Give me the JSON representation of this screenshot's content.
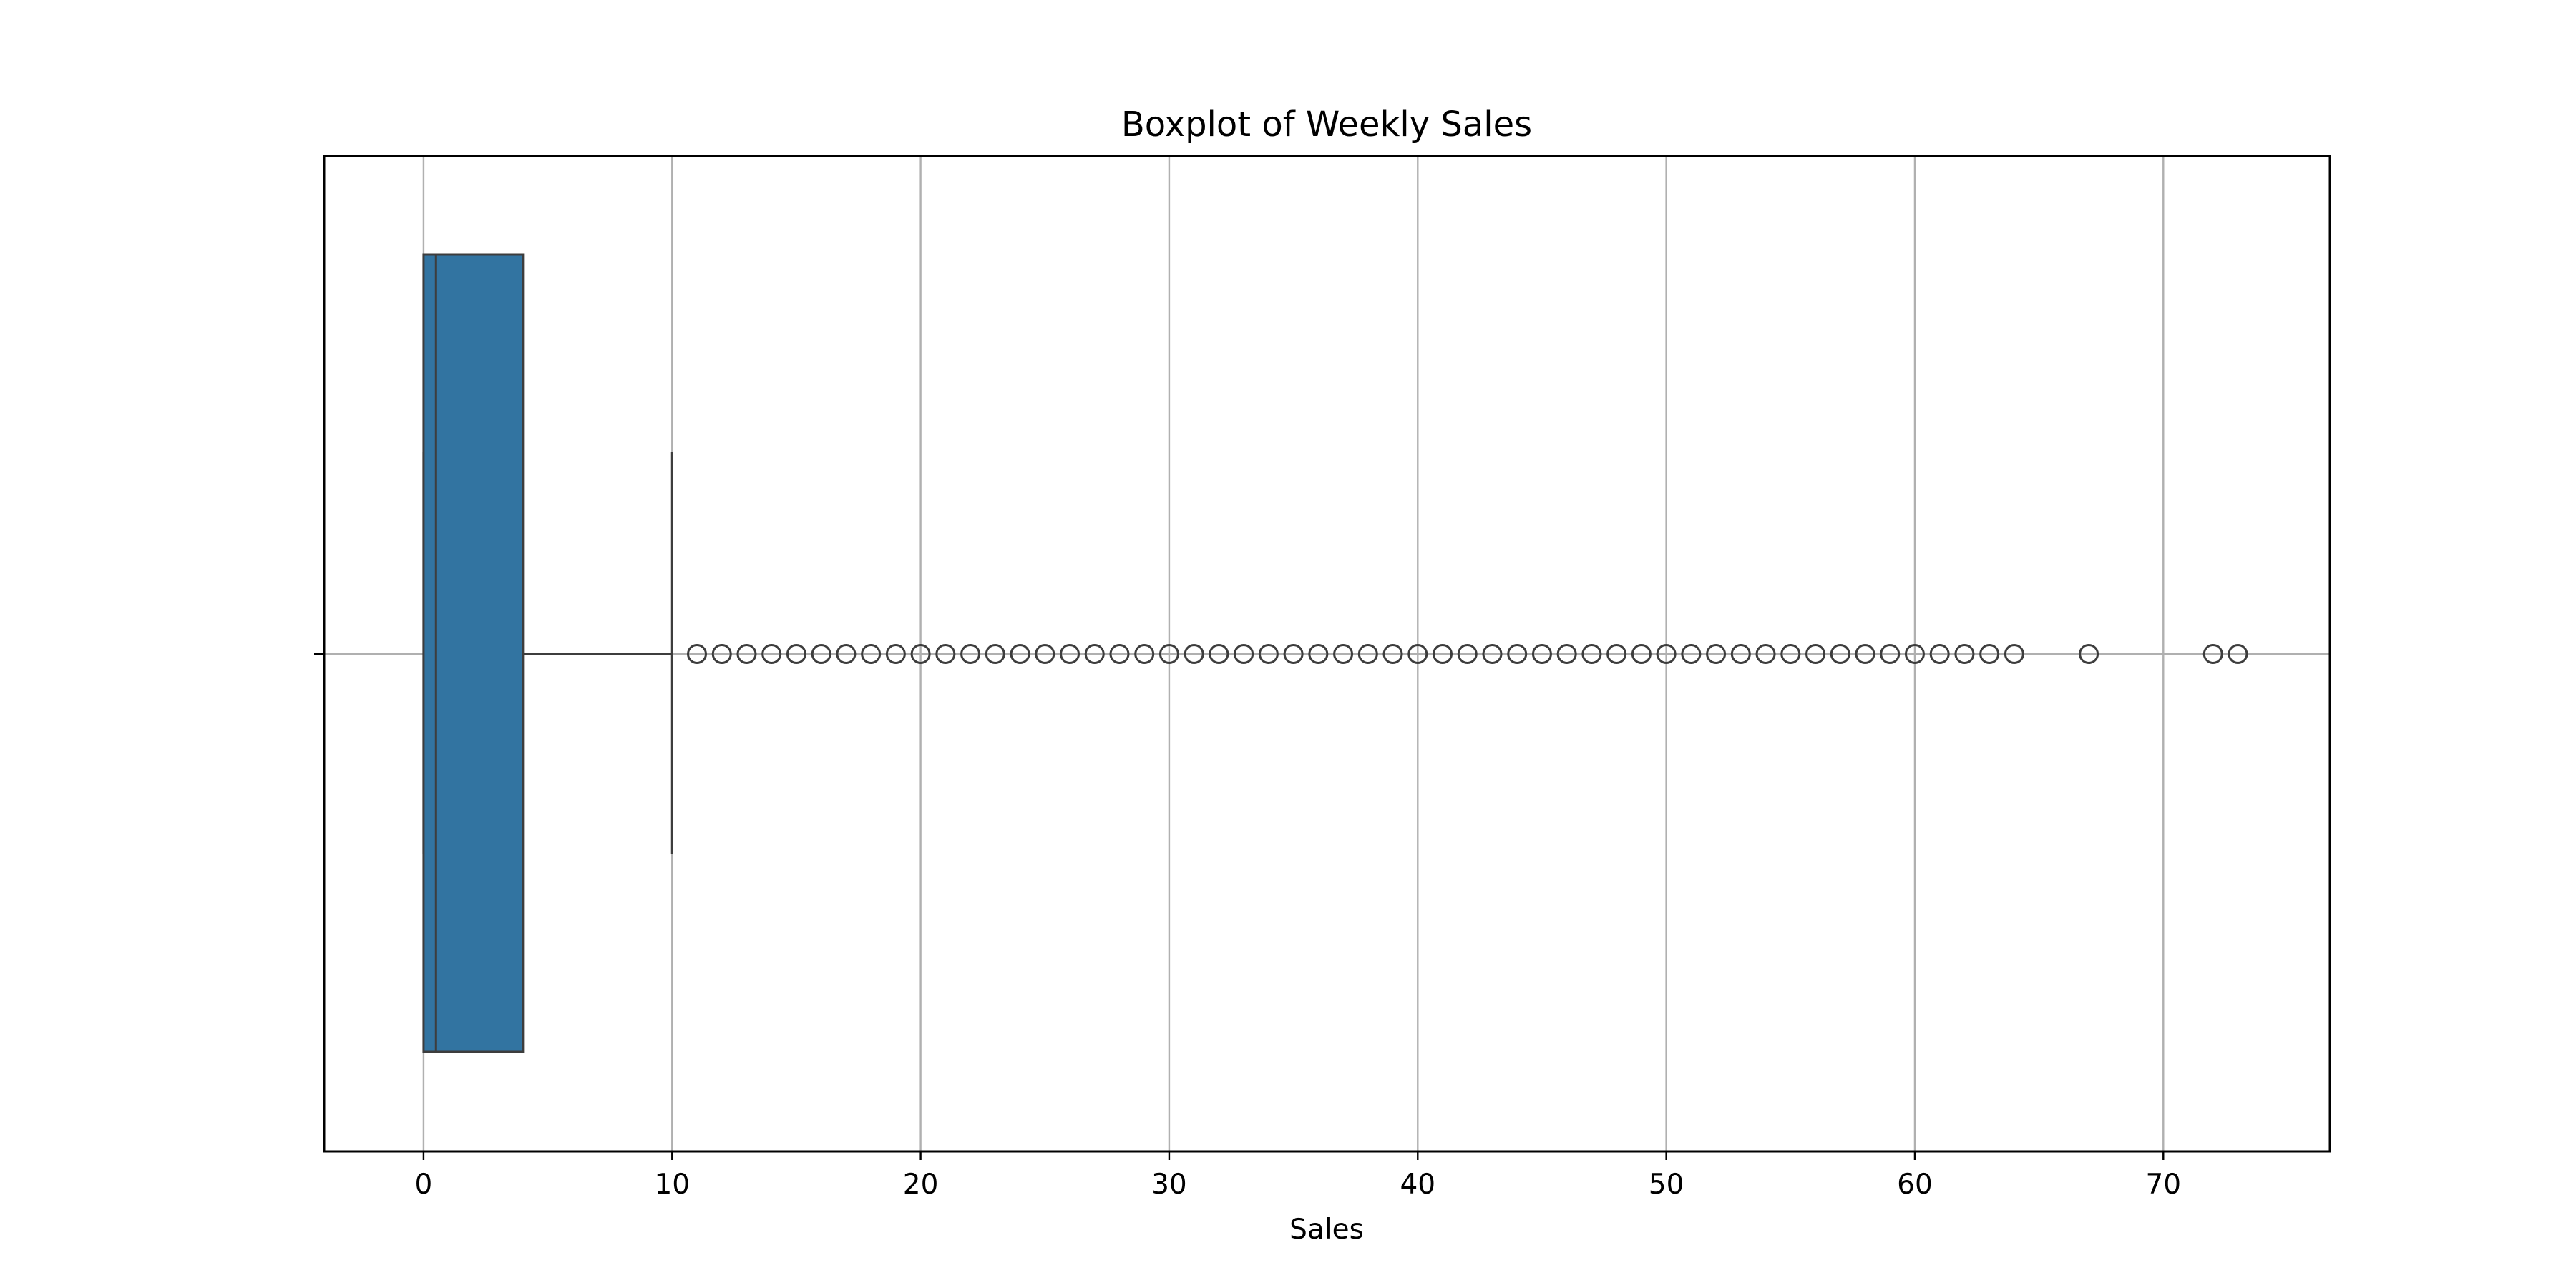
{
  "chart_data": {
    "type": "boxplot",
    "title": "Boxplot of Weekly Sales",
    "xlabel": "Sales",
    "ylabel": "",
    "orientation": "horizontal",
    "xlim": [
      -4,
      76.7
    ],
    "xticks": [
      0,
      10,
      20,
      30,
      40,
      50,
      60,
      70
    ],
    "grid": true,
    "box": {
      "whisker_low": 0,
      "q1": 0,
      "median": 0.5,
      "q3": 4,
      "whisker_high": 10,
      "fill_color": "#3274a1",
      "line_color": "#3d3d3d"
    },
    "outliers": [
      11,
      12,
      13,
      14,
      15,
      16,
      17,
      18,
      19,
      20,
      21,
      22,
      23,
      24,
      25,
      26,
      27,
      28,
      29,
      30,
      31,
      32,
      33,
      34,
      35,
      36,
      37,
      38,
      39,
      40,
      41,
      42,
      43,
      44,
      45,
      46,
      47,
      48,
      49,
      50,
      51,
      52,
      53,
      54,
      55,
      56,
      57,
      58,
      59,
      60,
      61,
      62,
      63,
      64,
      67,
      72,
      73
    ]
  }
}
